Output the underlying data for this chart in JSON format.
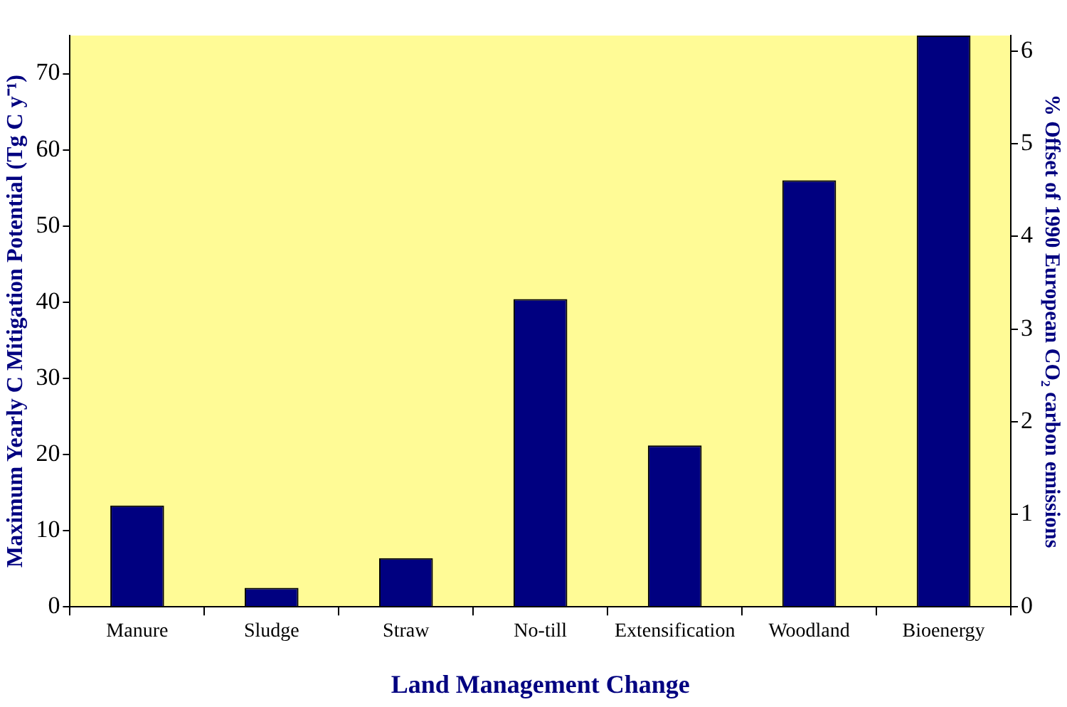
{
  "chart_data": {
    "type": "bar",
    "xlabel": "Land Management Change",
    "ylabel": "Maximum Yearly C Mitigation Potential (Tg C y⁻¹)",
    "y2label": "% Offset of 1990 European CO₂ carbon emissions",
    "categories": [
      "Manure",
      "Sludge",
      "Straw",
      "No-till",
      "Extensification",
      "Woodland",
      "Bioenergy"
    ],
    "values": [
      13.3,
      2.5,
      6.4,
      40.4,
      21.2,
      56.0,
      75.0
    ],
    "color": "#000080",
    "ylim": [
      0,
      75
    ],
    "yticks": [
      0,
      10,
      20,
      30,
      40,
      50,
      60,
      70
    ],
    "y2lim": [
      0,
      6.17
    ],
    "y2ticks": [
      0,
      1,
      2,
      3,
      4,
      5,
      6
    ],
    "grid": false,
    "legend": false
  }
}
